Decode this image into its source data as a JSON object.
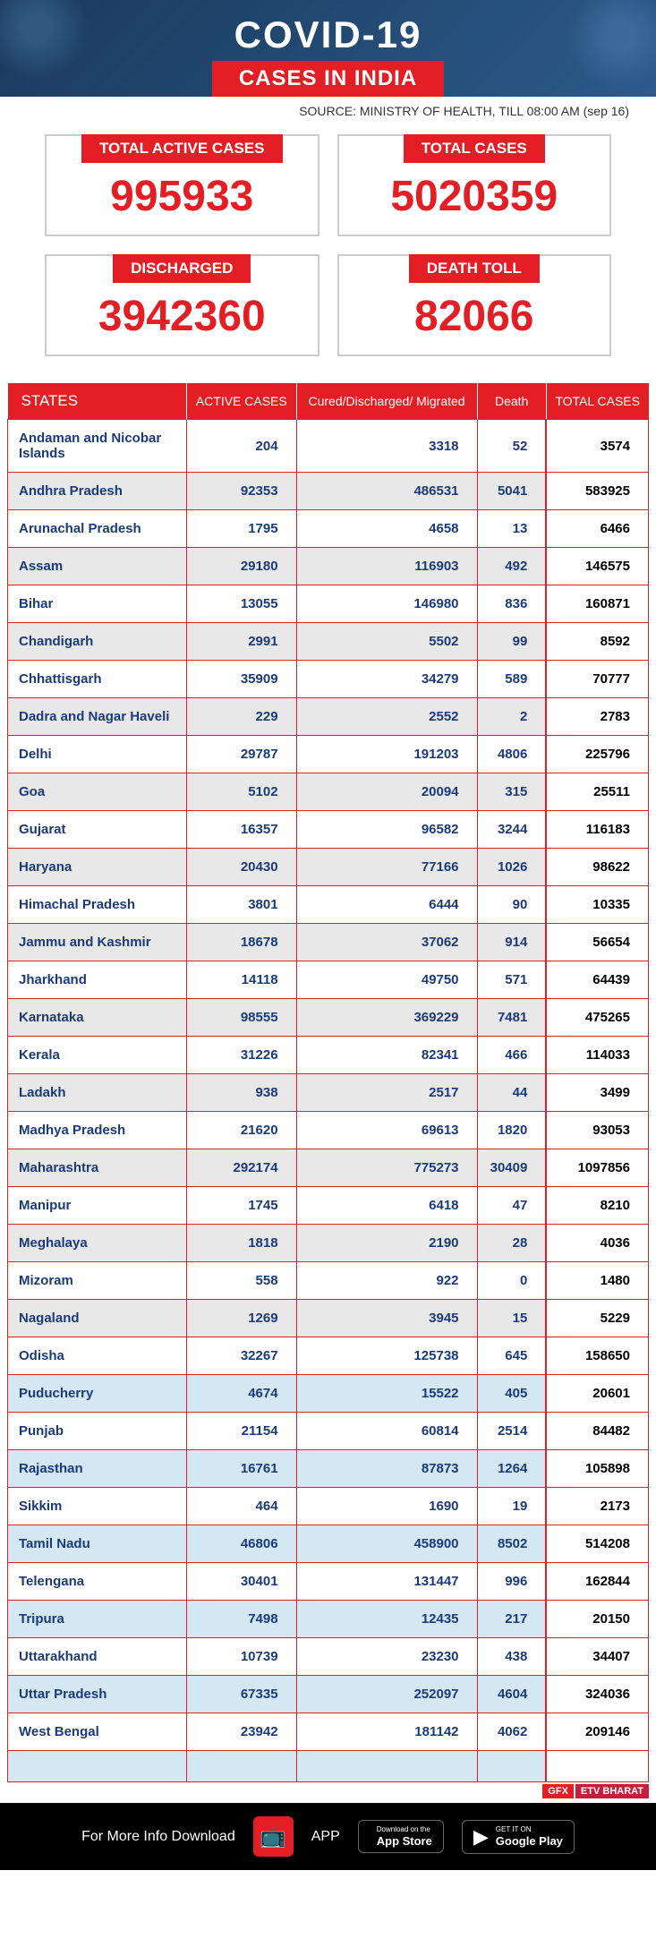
{
  "header": {
    "title": "COVID-19",
    "subtitle": "CASES IN INDIA",
    "source": "SOURCE: MINISTRY OF HEALTH, TILL 08:00 AM (sep 16)"
  },
  "stats": [
    {
      "label": "TOTAL ACTIVE CASES",
      "value": "995933"
    },
    {
      "label": "TOTAL CASES",
      "value": "5020359"
    },
    {
      "label": "DISCHARGED",
      "value": "3942360"
    },
    {
      "label": "DEATH TOLL",
      "value": "82066"
    }
  ],
  "table": {
    "headers": [
      "STATES",
      "ACTIVE CASES",
      "Cured/Discharged/ Migrated",
      "Death",
      "TOTAL CASES"
    ],
    "rows": [
      {
        "cls": "white",
        "state": "Andaman and Nicobar Islands",
        "active": "204",
        "cured": "3318",
        "death": "52",
        "total": "3574"
      },
      {
        "cls": "grey",
        "state": "Andhra Pradesh",
        "active": "92353",
        "cured": "486531",
        "death": "5041",
        "total": "583925"
      },
      {
        "cls": "white",
        "state": "Arunachal Pradesh",
        "active": "1795",
        "cured": "4658",
        "death": "13",
        "total": "6466"
      },
      {
        "cls": "grey",
        "state": "Assam",
        "active": "29180",
        "cured": "116903",
        "death": "492",
        "total": "146575"
      },
      {
        "cls": "white",
        "state": "Bihar",
        "active": "13055",
        "cured": "146980",
        "death": "836",
        "total": "160871"
      },
      {
        "cls": "grey",
        "state": "Chandigarh",
        "active": "2991",
        "cured": "5502",
        "death": "99",
        "total": "8592"
      },
      {
        "cls": "white",
        "state": "Chhattisgarh",
        "active": "35909",
        "cured": "34279",
        "death": "589",
        "total": "70777"
      },
      {
        "cls": "grey",
        "state": "Dadra and Nagar Haveli",
        "active": "229",
        "cured": "2552",
        "death": "2",
        "total": "2783"
      },
      {
        "cls": "white",
        "state": "Delhi",
        "active": "29787",
        "cured": "191203",
        "death": "4806",
        "total": "225796"
      },
      {
        "cls": "grey",
        "state": "Goa",
        "active": "5102",
        "cured": "20094",
        "death": "315",
        "total": "25511"
      },
      {
        "cls": "white",
        "state": "Gujarat",
        "active": "16357",
        "cured": "96582",
        "death": "3244",
        "total": "116183"
      },
      {
        "cls": "grey",
        "state": "Haryana",
        "active": "20430",
        "cured": "77166",
        "death": "1026",
        "total": "98622"
      },
      {
        "cls": "white",
        "state": "Himachal Pradesh",
        "active": "3801",
        "cured": "6444",
        "death": "90",
        "total": "10335"
      },
      {
        "cls": "grey",
        "state": "Jammu and Kashmir",
        "active": "18678",
        "cured": "37062",
        "death": "914",
        "total": "56654"
      },
      {
        "cls": "white",
        "state": "Jharkhand",
        "active": "14118",
        "cured": "49750",
        "death": "571",
        "total": "64439"
      },
      {
        "cls": "grey",
        "state": "Karnataka",
        "active": "98555",
        "cured": "369229",
        "death": "7481",
        "total": "475265"
      },
      {
        "cls": "white",
        "state": "Kerala",
        "active": "31226",
        "cured": "82341",
        "death": "466",
        "total": "114033"
      },
      {
        "cls": "grey",
        "state": "Ladakh",
        "active": "938",
        "cured": "2517",
        "death": "44",
        "total": "3499"
      },
      {
        "cls": "white",
        "state": "Madhya Pradesh",
        "active": "21620",
        "cured": "69613",
        "death": "1820",
        "total": "93053"
      },
      {
        "cls": "grey",
        "state": "Maharashtra",
        "active": "292174",
        "cured": "775273",
        "death": "30409",
        "total": "1097856"
      },
      {
        "cls": "white",
        "state": "Manipur",
        "active": "1745",
        "cured": "6418",
        "death": "47",
        "total": "8210"
      },
      {
        "cls": "grey",
        "state": "Meghalaya",
        "active": "1818",
        "cured": "2190",
        "death": "28",
        "total": "4036"
      },
      {
        "cls": "white",
        "state": "Mizoram",
        "active": "558",
        "cured": "922",
        "death": "0",
        "total": "1480"
      },
      {
        "cls": "grey",
        "state": "Nagaland",
        "active": "1269",
        "cured": "3945",
        "death": "15",
        "total": "5229"
      },
      {
        "cls": "white",
        "state": "Odisha",
        "active": "32267",
        "cured": "125738",
        "death": "645",
        "total": "158650"
      },
      {
        "cls": "blue",
        "state": "Puducherry",
        "active": "4674",
        "cured": "15522",
        "death": "405",
        "total": "20601"
      },
      {
        "cls": "white",
        "state": "Punjab",
        "active": "21154",
        "cured": "60814",
        "death": "2514",
        "total": "84482"
      },
      {
        "cls": "blue",
        "state": "Rajasthan",
        "active": "16761",
        "cured": "87873",
        "death": "1264",
        "total": "105898"
      },
      {
        "cls": "white",
        "state": "Sikkim",
        "active": "464",
        "cured": "1690",
        "death": "19",
        "total": "2173"
      },
      {
        "cls": "blue",
        "state": "Tamil Nadu",
        "active": "46806",
        "cured": "458900",
        "death": "8502",
        "total": "514208"
      },
      {
        "cls": "white",
        "state": "Telengana",
        "active": "30401",
        "cured": "131447",
        "death": "996",
        "total": "162844"
      },
      {
        "cls": "blue",
        "state": "Tripura",
        "active": "7498",
        "cured": "12435",
        "death": "217",
        "total": "20150"
      },
      {
        "cls": "white",
        "state": "Uttarakhand",
        "active": "10739",
        "cured": "23230",
        "death": "438",
        "total": "34407"
      },
      {
        "cls": "blue",
        "state": "Uttar Pradesh",
        "active": "67335",
        "cured": "252097",
        "death": "4604",
        "total": "324036"
      },
      {
        "cls": "white",
        "state": "West Bengal",
        "active": "23942",
        "cured": "181142",
        "death": "4062",
        "total": "209146"
      }
    ]
  },
  "footer": {
    "text": "For More Info Download",
    "app": "APP",
    "appstore_small": "Download on the",
    "appstore": "App Store",
    "play_small": "GET IT ON",
    "play": "Google Play",
    "gfx": "GFX",
    "etv": "ETV BHARAT"
  }
}
